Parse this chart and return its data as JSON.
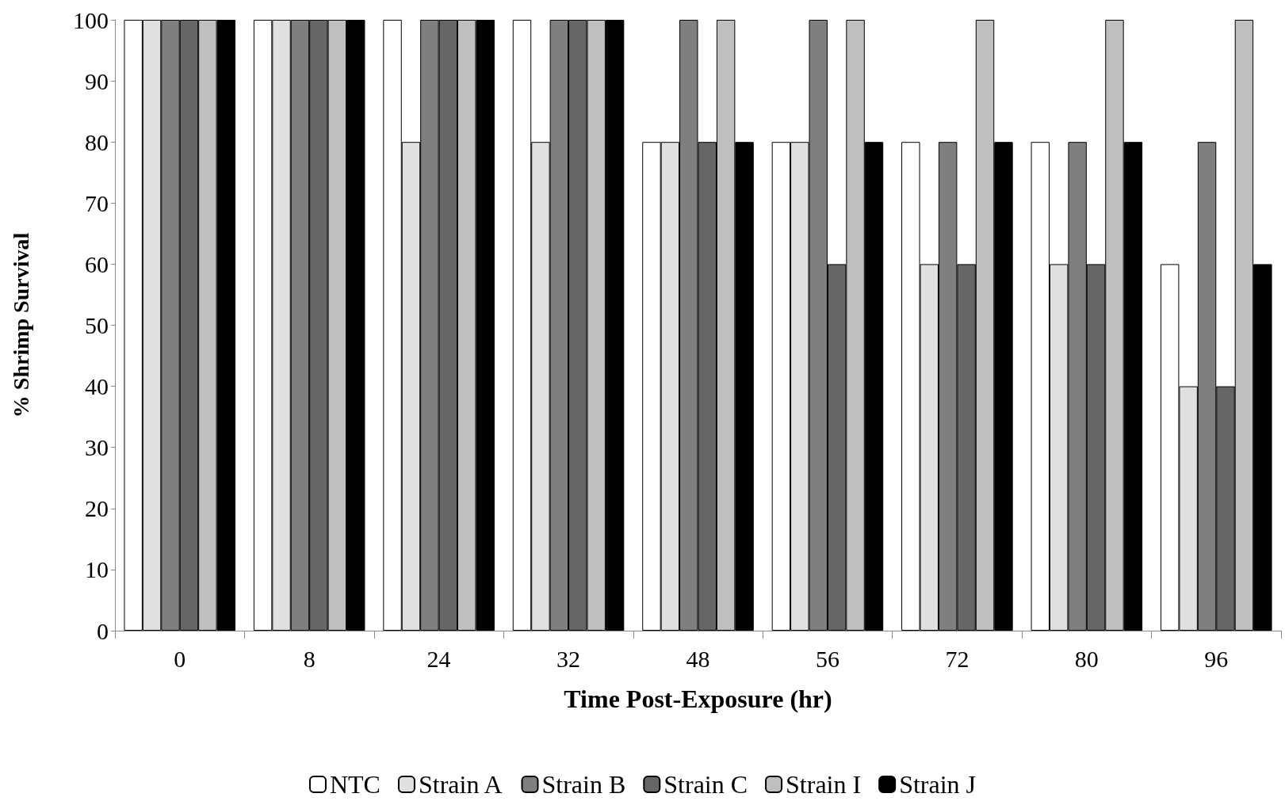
{
  "chart_data": {
    "type": "bar",
    "xlabel": "Time Post-Exposure (hr)",
    "ylabel": "% Shrimp Survival",
    "categories": [
      "0",
      "8",
      "24",
      "32",
      "48",
      "56",
      "72",
      "80",
      "96"
    ],
    "series": [
      {
        "name": "NTC",
        "color": "#ffffff",
        "values": [
          100,
          100,
          100,
          100,
          80,
          80,
          80,
          80,
          60
        ]
      },
      {
        "name": "Strain A",
        "color": "#e0e0e0",
        "values": [
          100,
          100,
          80,
          80,
          80,
          80,
          60,
          60,
          40
        ]
      },
      {
        "name": "Strain B",
        "color": "#7f7f7f",
        "values": [
          100,
          100,
          100,
          100,
          100,
          100,
          80,
          80,
          80
        ]
      },
      {
        "name": "Strain C",
        "color": "#666666",
        "values": [
          100,
          100,
          100,
          100,
          80,
          60,
          60,
          60,
          40
        ]
      },
      {
        "name": "Strain I",
        "color": "#bfbfbf",
        "values": [
          100,
          100,
          100,
          100,
          100,
          100,
          100,
          100,
          100
        ]
      },
      {
        "name": "Strain J",
        "color": "#000000",
        "values": [
          100,
          100,
          100,
          100,
          80,
          80,
          80,
          80,
          60
        ]
      }
    ],
    "ylim": [
      0,
      100
    ],
    "yticks": [
      0,
      10,
      20,
      30,
      40,
      50,
      60,
      70,
      80,
      90,
      100
    ],
    "grid": false,
    "legend": "bottom"
  }
}
